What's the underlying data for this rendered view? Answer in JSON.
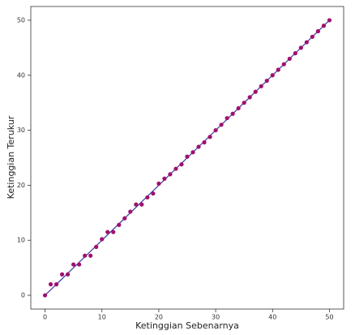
{
  "chart_data": {
    "type": "scatter",
    "x_label": "Ketinggian Sebenarnya",
    "y_label": "Ketinggian Terukur",
    "x": [
      0,
      1,
      2,
      3,
      4,
      5,
      6,
      7,
      8,
      9,
      10,
      11,
      12,
      13,
      14,
      15,
      16,
      17,
      18,
      19,
      20,
      21,
      22,
      23,
      24,
      25,
      26,
      27,
      28,
      29,
      30,
      31,
      32,
      33,
      34,
      35,
      36,
      37,
      38,
      39,
      40,
      41,
      42,
      43,
      44,
      45,
      46,
      47,
      48,
      49,
      50
    ],
    "series": [
      {
        "color": "#a0106e",
        "values": [
          0,
          2,
          2,
          3.8,
          3.8,
          5.6,
          5.6,
          7.2,
          7.2,
          8.8,
          10.2,
          11.5,
          11.5,
          12.8,
          14,
          15.2,
          16.5,
          16.5,
          17.8,
          18.5,
          20.3,
          21.2,
          22,
          23,
          23.8,
          25.2,
          26,
          27,
          27.8,
          28.8,
          30,
          31,
          32.2,
          33,
          34,
          35,
          36,
          37,
          38,
          39,
          40,
          41,
          42,
          43,
          44,
          45,
          46,
          47,
          48,
          49,
          50
        ]
      }
    ],
    "fit_line": {
      "x": [
        0,
        50
      ],
      "values": [
        0,
        50
      ],
      "color": "#3a3aa0"
    },
    "xlim": [
      -2.5,
      52.5
    ],
    "ylim": [
      -2.5,
      52.5
    ],
    "xticks": [
      0,
      10,
      20,
      30,
      40,
      50
    ],
    "yticks": [
      0,
      10,
      20,
      30,
      40,
      50
    ]
  }
}
